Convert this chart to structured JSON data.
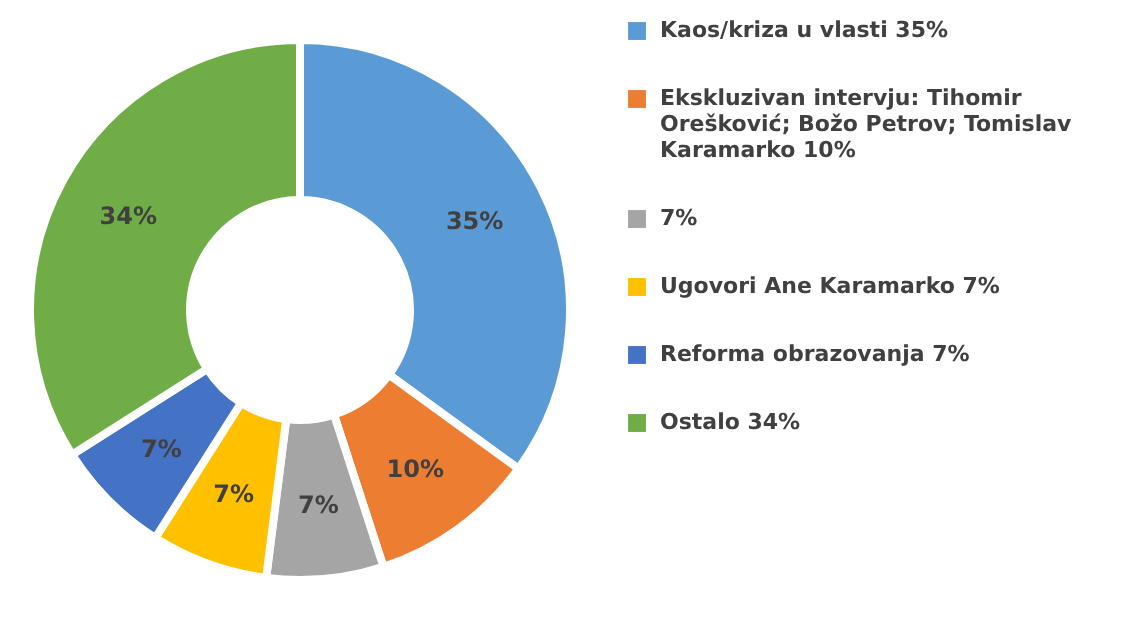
{
  "chart_data": {
    "type": "donut",
    "categories": [
      "Kaos/kriza u vlasti  35%",
      "Ekskluzivan intervju: Tihomir Orešković; Božo Petrov; Tomislav Karamarko  10%",
      "7%",
      "Ugovori Ane Karamarko  7%",
      "Reforma obrazovanja  7%",
      "Ostalo 34%"
    ],
    "values": [
      35,
      10,
      7,
      7,
      7,
      34
    ],
    "colors": [
      "#5b9bd5",
      "#ed7d31",
      "#a5a5a5",
      "#ffc000",
      "#4472c4",
      "#70ad47"
    ],
    "value_labels": [
      "35%",
      "10%",
      "7%",
      "7%",
      "7%",
      "34%"
    ],
    "legend": "right"
  }
}
